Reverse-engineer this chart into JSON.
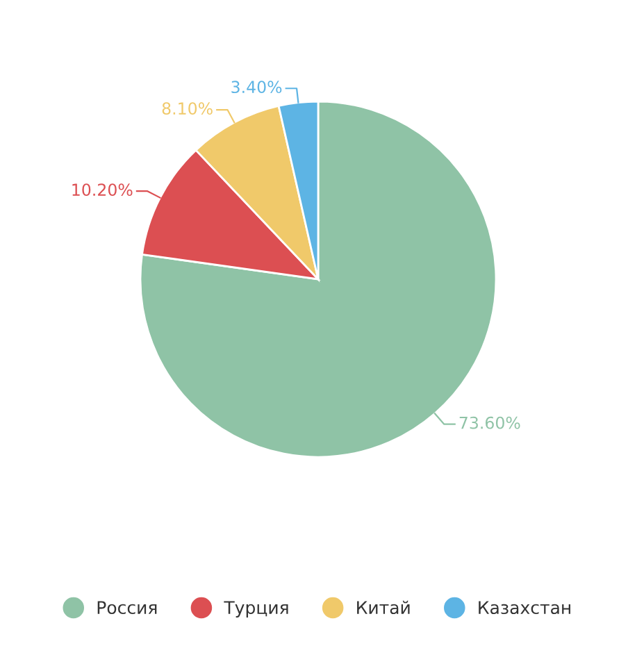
{
  "chart_data": {
    "type": "pie",
    "categories": [
      "Россия",
      "Турция",
      "Китай",
      "Казахстан"
    ],
    "values": [
      73.6,
      10.2,
      8.1,
      3.4
    ],
    "value_labels": [
      "73.60%",
      "10.20%",
      "8.10%",
      "3.40%"
    ],
    "colors": [
      "#8fc3a6",
      "#dc4f52",
      "#f0c96a",
      "#5db4e4"
    ],
    "legend": "bottom"
  }
}
